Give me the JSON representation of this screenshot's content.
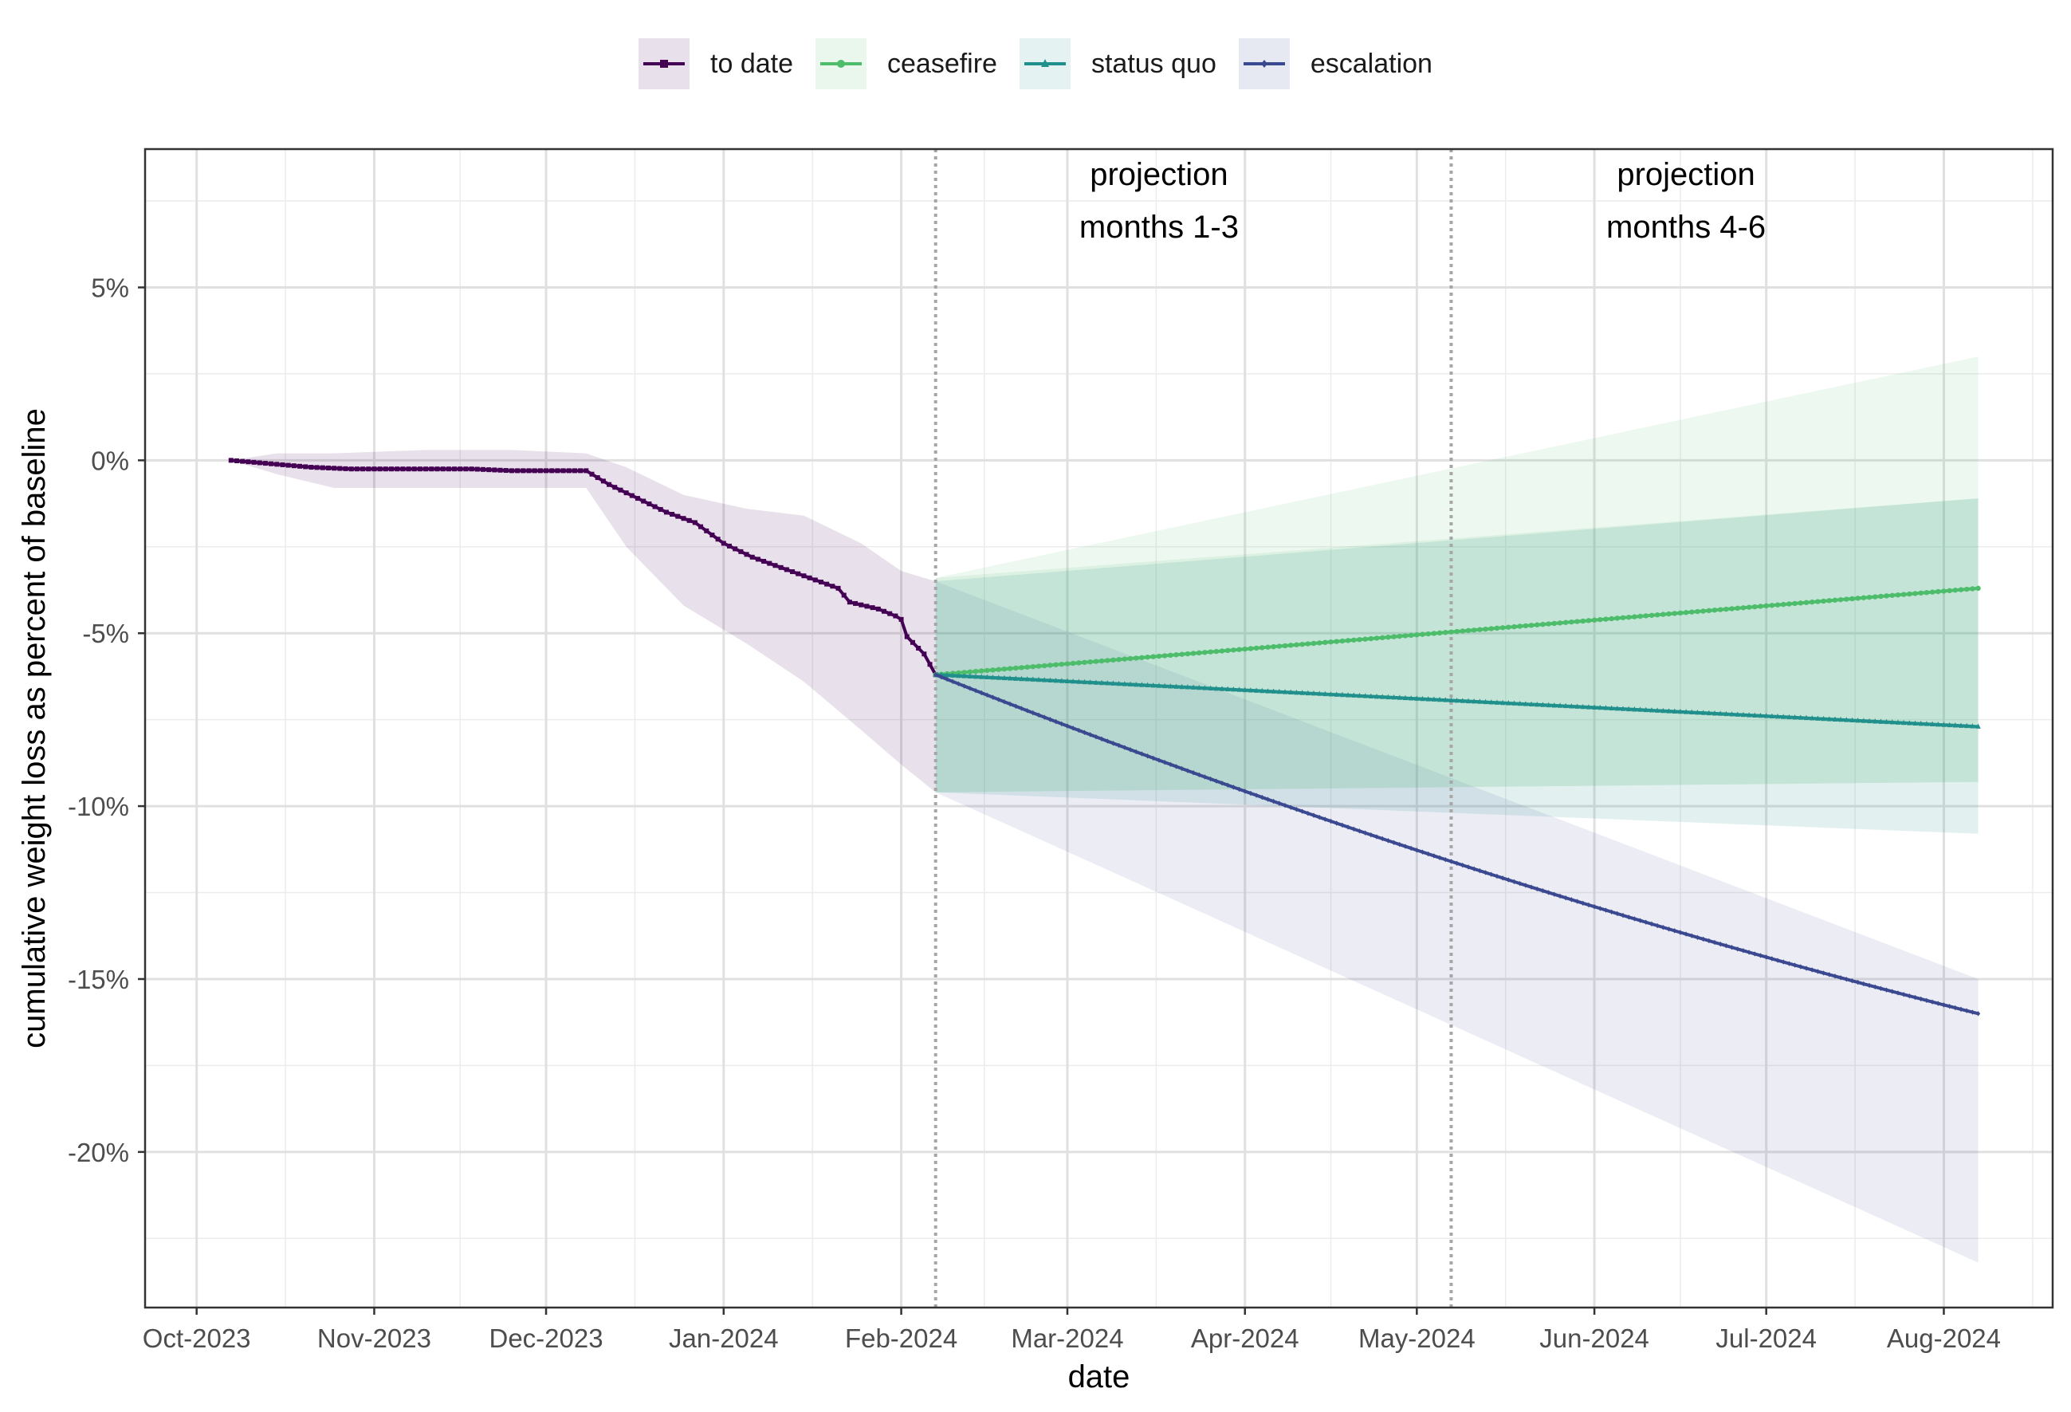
{
  "chart_data": {
    "type": "line",
    "xlabel": "date",
    "ylabel": "cumulative weight loss as percent of baseline",
    "x_tick_labels": [
      "Oct-2023",
      "Nov-2023",
      "Dec-2023",
      "Jan-2024",
      "Feb-2024",
      "Mar-2024",
      "Apr-2024",
      "May-2024",
      "Jun-2024",
      "Jul-2024",
      "Aug-2024"
    ],
    "x_ticks": [
      "2023-10-01",
      "2023-11-01",
      "2023-12-01",
      "2024-01-01",
      "2024-02-01",
      "2024-03-01",
      "2024-04-01",
      "2024-05-01",
      "2024-06-01",
      "2024-07-01",
      "2024-08-01"
    ],
    "xlim": [
      "2023-09-22",
      "2024-08-20"
    ],
    "y_ticks": [
      5,
      0,
      -5,
      -10,
      -15,
      -20
    ],
    "y_tick_labels": [
      "5%",
      "0%",
      "-5%",
      "-10%",
      "-15%",
      "-20%"
    ],
    "ylim": [
      -24.5,
      9
    ],
    "grid": true,
    "legend_position": "top",
    "annotations": [
      {
        "lines": [
          "projection",
          "months 1-3"
        ],
        "x": "2024-03-17"
      },
      {
        "lines": [
          "projection",
          "months 4-6"
        ],
        "x": "2024-06-17"
      }
    ],
    "vlines": [
      "2024-02-07",
      "2024-05-07"
    ],
    "series": [
      {
        "name": "to date",
        "color": "#440154",
        "marker": "square",
        "points": [
          [
            "2023-10-07",
            0.0
          ],
          [
            "2023-10-14",
            -0.1
          ],
          [
            "2023-10-21",
            -0.2
          ],
          [
            "2023-10-28",
            -0.25
          ],
          [
            "2023-11-04",
            -0.25
          ],
          [
            "2023-11-11",
            -0.25
          ],
          [
            "2023-11-18",
            -0.25
          ],
          [
            "2023-11-25",
            -0.3
          ],
          [
            "2023-12-02",
            -0.3
          ],
          [
            "2023-12-07",
            -0.3
          ],
          [
            "2023-12-08",
            -0.3
          ],
          [
            "2023-12-12",
            -0.7
          ],
          [
            "2023-12-17",
            -1.1
          ],
          [
            "2023-12-22",
            -1.5
          ],
          [
            "2023-12-27",
            -1.8
          ],
          [
            "2024-01-01",
            -2.4
          ],
          [
            "2024-01-06",
            -2.8
          ],
          [
            "2024-01-11",
            -3.1
          ],
          [
            "2024-01-16",
            -3.4
          ],
          [
            "2024-01-21",
            -3.7
          ],
          [
            "2024-01-23",
            -4.1
          ],
          [
            "2024-01-28",
            -4.3
          ],
          [
            "2024-01-31",
            -4.5
          ],
          [
            "2024-02-01",
            -4.6
          ],
          [
            "2024-02-02",
            -5.1
          ],
          [
            "2024-02-05",
            -5.6
          ],
          [
            "2024-02-07",
            -6.2
          ]
        ],
        "ribbon": [
          [
            "2023-10-07",
            0.0,
            0.0
          ],
          [
            "2023-10-15",
            -0.4,
            0.2
          ],
          [
            "2023-10-25",
            -0.8,
            0.2
          ],
          [
            "2023-11-10",
            -0.8,
            0.3
          ],
          [
            "2023-11-25",
            -0.8,
            0.3
          ],
          [
            "2023-12-08",
            -0.8,
            0.2
          ],
          [
            "2023-12-15",
            -2.5,
            -0.2
          ],
          [
            "2023-12-25",
            -4.2,
            -1.0
          ],
          [
            "2024-01-05",
            -5.3,
            -1.4
          ],
          [
            "2024-01-15",
            -6.4,
            -1.6
          ],
          [
            "2024-01-25",
            -7.8,
            -2.4
          ],
          [
            "2024-02-01",
            -8.8,
            -3.2
          ],
          [
            "2024-02-07",
            -9.6,
            -3.5
          ]
        ]
      },
      {
        "name": "ceasefire",
        "color": "#4dbd6b",
        "marker": "circle",
        "start": [
          "2024-02-07",
          -6.2
        ],
        "end": [
          "2024-08-07",
          -3.7
        ],
        "ribbon_outer": [
          [
            -9.6,
            -3.4
          ],
          [
            -9.3,
            3.0
          ]
        ],
        "ribbon_inner": [
          [
            -9.6,
            -3.4
          ],
          [
            -9.3,
            -1.1
          ]
        ]
      },
      {
        "name": "status quo",
        "color": "#21908c",
        "marker": "triangle",
        "start": [
          "2024-02-07",
          -6.2
        ],
        "end": [
          "2024-08-07",
          -7.7
        ],
        "ribbon": [
          [
            -9.6,
            -3.5
          ],
          [
            -10.8,
            -1.1
          ]
        ]
      },
      {
        "name": "escalation",
        "color": "#3b4991",
        "marker": "diamond",
        "start": [
          "2024-02-07",
          -6.2
        ],
        "end": [
          "2024-08-07",
          -16.0
        ],
        "mid": [
          "2024-05-07",
          -11.6
        ],
        "ribbon": [
          [
            -9.6,
            -3.5
          ],
          [
            -23.2,
            -15.0
          ]
        ]
      }
    ]
  }
}
